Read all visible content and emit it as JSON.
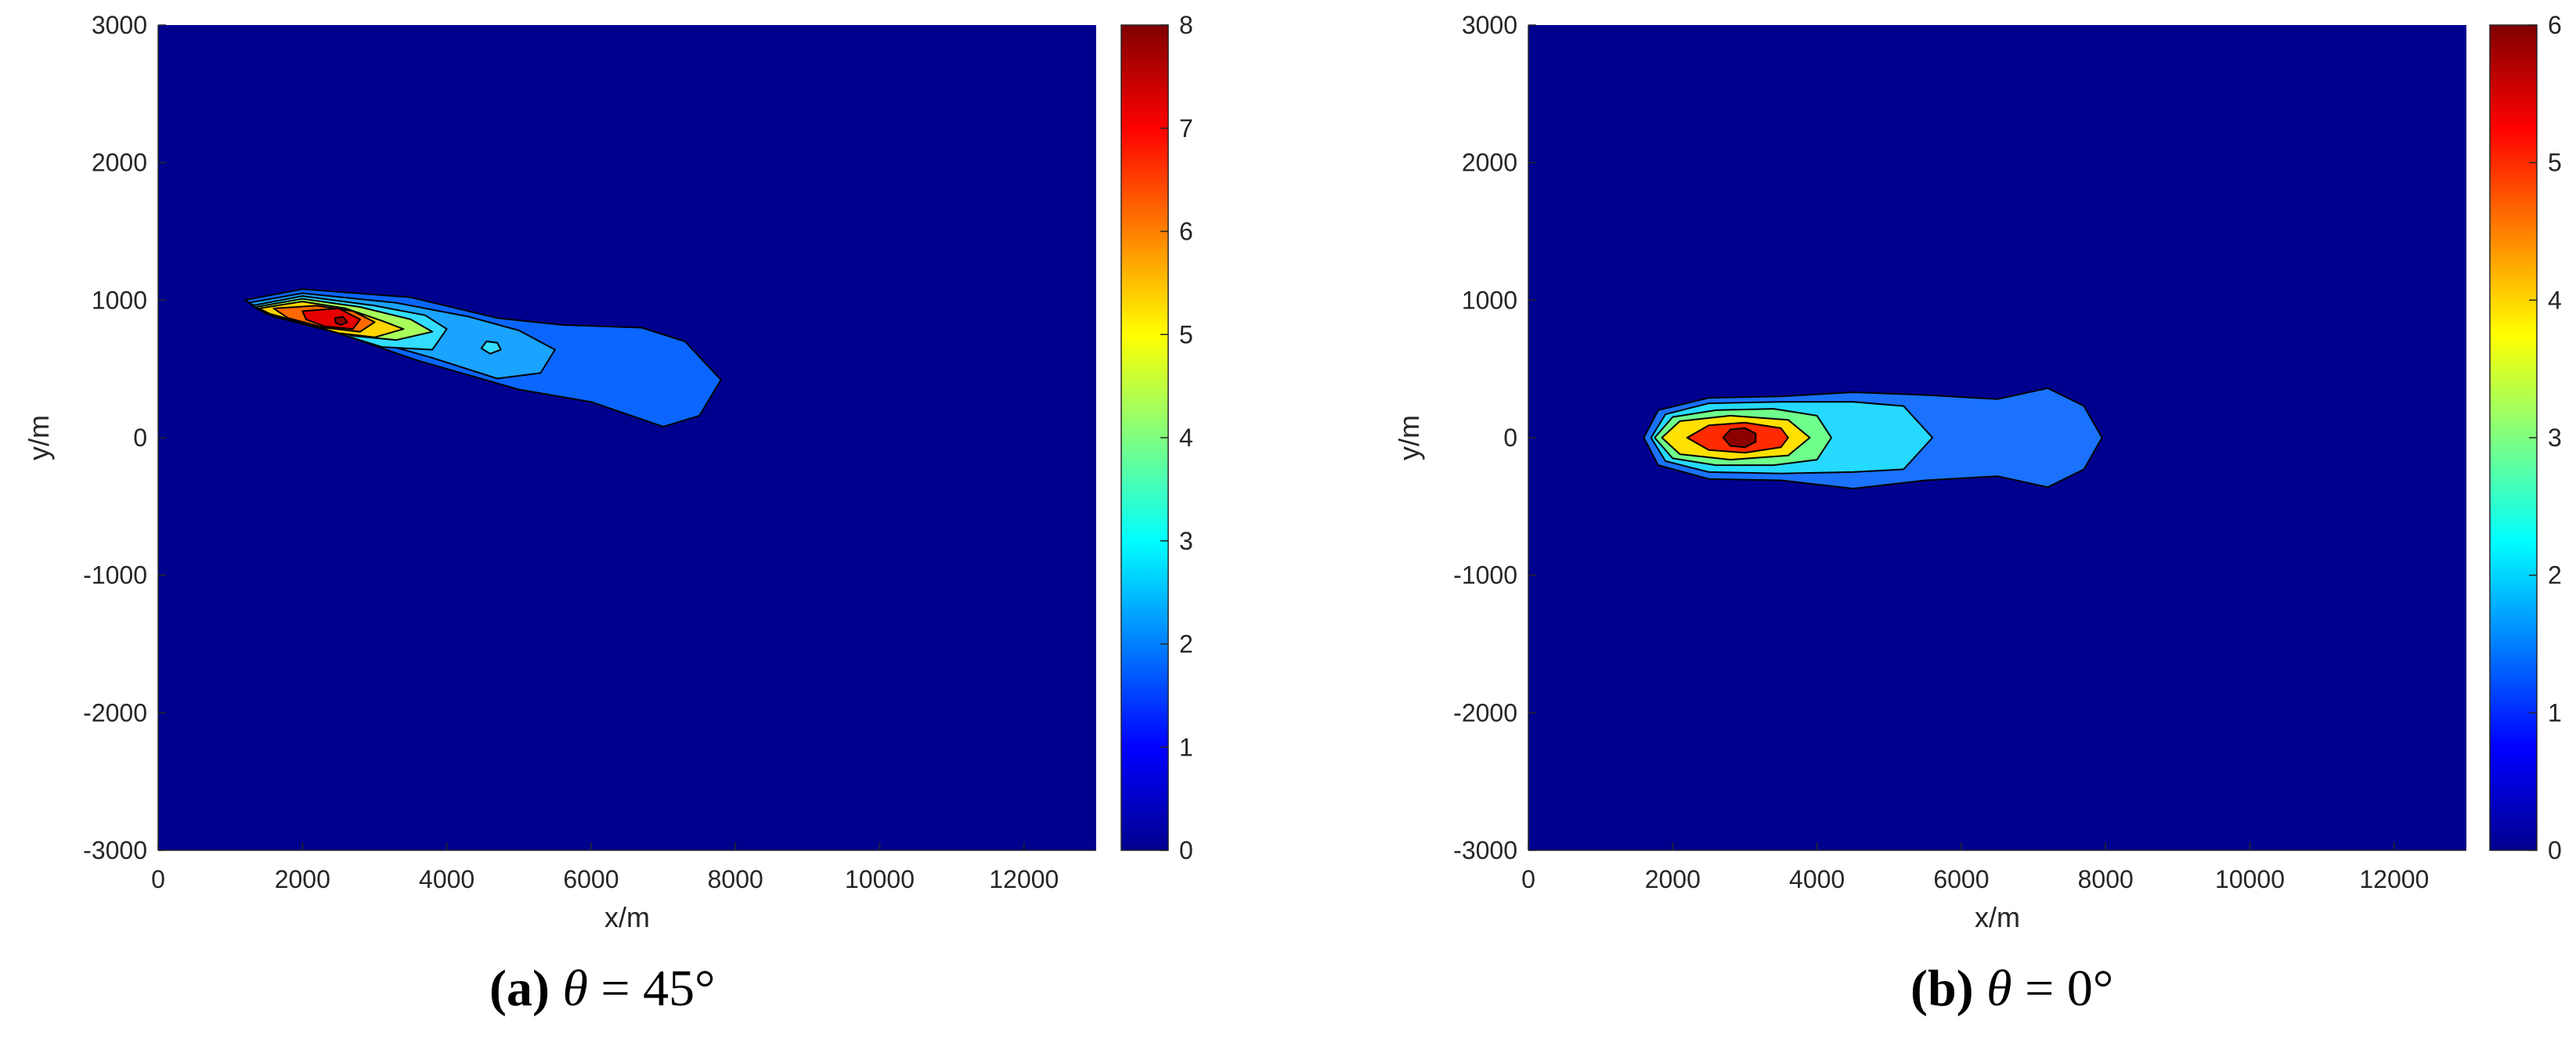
{
  "colors": {
    "background": "#00008f",
    "contour_line": "#000000",
    "axis_text": "#262626"
  },
  "colormap": [
    "#00008f",
    "#0000ff",
    "#0080ff",
    "#00ffff",
    "#80ff80",
    "#ffff00",
    "#ff8000",
    "#ff0000",
    "#800000"
  ],
  "captions": [
    {
      "label": "(a)",
      "theta": "θ",
      "rest": " = 45°"
    },
    {
      "label": "(b)",
      "theta": "θ",
      "rest": " = 0°"
    }
  ],
  "chart_data": [
    {
      "type": "contour",
      "xlabel": "x/m",
      "ylabel": "y/m",
      "xlim": [
        0,
        13000
      ],
      "ylim": [
        -3000,
        3000
      ],
      "xticks": [
        0,
        2000,
        4000,
        6000,
        8000,
        10000,
        12000
      ],
      "yticks": [
        -3000,
        -2000,
        -1000,
        0,
        1000,
        2000,
        3000
      ],
      "colorbar": {
        "min": 0,
        "max": 8,
        "ticks": [
          0,
          1,
          2,
          3,
          4,
          5,
          6,
          7,
          8
        ]
      },
      "contours": [
        {
          "level": 1,
          "color": "#0a66ff",
          "points": [
            [
              1200,
              1000
            ],
            [
              2000,
              1080
            ],
            [
              3500,
              1020
            ],
            [
              4700,
              870
            ],
            [
              5600,
              820
            ],
            [
              6700,
              800
            ],
            [
              7300,
              700
            ],
            [
              7800,
              420
            ],
            [
              7500,
              160
            ],
            [
              7000,
              80
            ],
            [
              6000,
              260
            ],
            [
              5000,
              350
            ],
            [
              3600,
              560
            ],
            [
              2500,
              760
            ],
            [
              1600,
              880
            ]
          ]
        },
        {
          "level": 2,
          "color": "#1aa3ff",
          "points": [
            [
              1250,
              980
            ],
            [
              2000,
              1050
            ],
            [
              3300,
              980
            ],
            [
              4300,
              880
            ],
            [
              5000,
              780
            ],
            [
              5500,
              640
            ],
            [
              5300,
              470
            ],
            [
              4700,
              430
            ],
            [
              3800,
              580
            ],
            [
              2800,
              730
            ],
            [
              1700,
              880
            ]
          ]
        },
        {
          "level": 3,
          "color": "#33ddff",
          "points": [
            [
              1300,
              960
            ],
            [
              2000,
              1030
            ],
            [
              3000,
              960
            ],
            [
              3700,
              890
            ],
            [
              4000,
              790
            ],
            [
              3800,
              640
            ],
            [
              3100,
              660
            ],
            [
              2300,
              790
            ],
            [
              1500,
              900
            ]
          ]
        },
        {
          "level": 3,
          "color": "#33ddff",
          "points": [
            [
              4550,
              700
            ],
            [
              4700,
              690
            ],
            [
              4750,
              640
            ],
            [
              4600,
              610
            ],
            [
              4480,
              650
            ]
          ]
        },
        {
          "level": 4,
          "color": "#a8ff5c",
          "points": [
            [
              1350,
              950
            ],
            [
              2000,
              1010
            ],
            [
              2800,
              950
            ],
            [
              3500,
              860
            ],
            [
              3800,
              770
            ],
            [
              3300,
              710
            ],
            [
              2700,
              740
            ],
            [
              2000,
              840
            ],
            [
              1500,
              900
            ]
          ]
        },
        {
          "level": 5,
          "color": "#ffd400",
          "points": [
            [
              1400,
              940
            ],
            [
              2000,
              990
            ],
            [
              2600,
              940
            ],
            [
              3100,
              850
            ],
            [
              3400,
              790
            ],
            [
              3000,
              730
            ],
            [
              2500,
              760
            ],
            [
              1900,
              850
            ],
            [
              1550,
              900
            ]
          ]
        },
        {
          "level": 6,
          "color": "#ff6a00",
          "points": [
            [
              1600,
              940
            ],
            [
              2200,
              960
            ],
            [
              2700,
              920
            ],
            [
              3000,
              840
            ],
            [
              2800,
              770
            ],
            [
              2300,
              800
            ],
            [
              1800,
              870
            ]
          ]
        },
        {
          "level": 7,
          "color": "#e60000",
          "points": [
            [
              2000,
              920
            ],
            [
              2500,
              940
            ],
            [
              2800,
              860
            ],
            [
              2700,
              790
            ],
            [
              2300,
              810
            ],
            [
              2050,
              860
            ]
          ]
        },
        {
          "level": 8,
          "color": "#8c0000",
          "points": [
            [
              2450,
              870
            ],
            [
              2560,
              880
            ],
            [
              2620,
              840
            ],
            [
              2540,
              820
            ],
            [
              2460,
              835
            ]
          ]
        }
      ]
    },
    {
      "type": "contour",
      "xlabel": "x/m",
      "ylabel": "y/m",
      "xlim": [
        0,
        13000
      ],
      "ylim": [
        -3000,
        3000
      ],
      "xticks": [
        0,
        2000,
        4000,
        6000,
        8000,
        10000,
        12000
      ],
      "yticks": [
        -3000,
        -2000,
        -1000,
        0,
        1000,
        2000,
        3000
      ],
      "colorbar": {
        "min": 0,
        "max": 6,
        "ticks": [
          0,
          1,
          2,
          3,
          4,
          5,
          6
        ]
      },
      "contours": [
        {
          "level": 1,
          "color": "#1a72ff",
          "points": [
            [
              1600,
              0
            ],
            [
              1800,
              200
            ],
            [
              2500,
              290
            ],
            [
              3500,
              300
            ],
            [
              4500,
              330
            ],
            [
              5500,
              310
            ],
            [
              6500,
              280
            ],
            [
              7200,
              360
            ],
            [
              7700,
              230
            ],
            [
              7950,
              0
            ],
            [
              7700,
              -230
            ],
            [
              7200,
              -360
            ],
            [
              6500,
              -280
            ],
            [
              5500,
              -310
            ],
            [
              4500,
              -370
            ],
            [
              3500,
              -310
            ],
            [
              2500,
              -300
            ],
            [
              1800,
              -200
            ]
          ]
        },
        {
          "level": 2,
          "color": "#26d9ff",
          "points": [
            [
              1700,
              0
            ],
            [
              1900,
              170
            ],
            [
              2500,
              250
            ],
            [
              3500,
              260
            ],
            [
              4500,
              260
            ],
            [
              5200,
              230
            ],
            [
              5600,
              0
            ],
            [
              5200,
              -230
            ],
            [
              4500,
              -250
            ],
            [
              3500,
              -260
            ],
            [
              2500,
              -250
            ],
            [
              1900,
              -170
            ]
          ]
        },
        {
          "level": 3,
          "color": "#6fff8c",
          "points": [
            [
              1750,
              0
            ],
            [
              2000,
              150
            ],
            [
              2600,
              200
            ],
            [
              3400,
              210
            ],
            [
              4000,
              160
            ],
            [
              4200,
              0
            ],
            [
              4000,
              -160
            ],
            [
              3400,
              -200
            ],
            [
              2600,
              -200
            ],
            [
              2000,
              -150
            ]
          ]
        },
        {
          "level": 4,
          "color": "#ffe000",
          "points": [
            [
              1850,
              0
            ],
            [
              2100,
              120
            ],
            [
              2800,
              160
            ],
            [
              3600,
              130
            ],
            [
              3900,
              0
            ],
            [
              3600,
              -130
            ],
            [
              2800,
              -160
            ],
            [
              2100,
              -120
            ]
          ]
        },
        {
          "level": 5,
          "color": "#ff2a00",
          "points": [
            [
              2200,
              0
            ],
            [
              2500,
              90
            ],
            [
              3000,
              110
            ],
            [
              3500,
              70
            ],
            [
              3600,
              0
            ],
            [
              3500,
              -70
            ],
            [
              3000,
              -110
            ],
            [
              2500,
              -90
            ]
          ]
        },
        {
          "level": 6,
          "color": "#8c0000",
          "points": [
            [
              2700,
              0
            ],
            [
              2800,
              60
            ],
            [
              3000,
              70
            ],
            [
              3150,
              30
            ],
            [
              3150,
              -30
            ],
            [
              3000,
              -70
            ],
            [
              2800,
              -60
            ]
          ]
        }
      ]
    }
  ]
}
